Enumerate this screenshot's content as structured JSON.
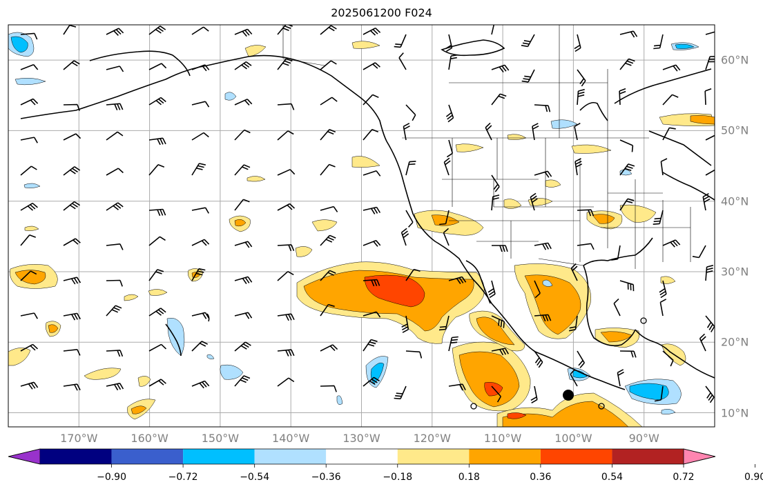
{
  "title": "2025061200 F024",
  "map": {
    "projection": "plate-carree",
    "extent": {
      "lon_min": -180,
      "lon_max": -80,
      "lat_min": 8,
      "lat_max": 65
    },
    "lon_labels": [
      "170°W",
      "160°W",
      "150°W",
      "140°W",
      "130°W",
      "120°W",
      "110°W",
      "100°W",
      "90°W"
    ],
    "lat_labels": [
      "60°N",
      "50°N",
      "40°N",
      "30°N",
      "20°N",
      "10°N"
    ],
    "gridlines": true,
    "field": "shaded anomaly with wind barbs",
    "wind_barbs": true
  },
  "colorbar": {
    "orientation": "horizontal",
    "extend": "both",
    "colors": [
      "#9932cc",
      "#000080",
      "#3a5fcd",
      "#00bfff",
      "#b0e0ff",
      "#ffffff",
      "#ffe98a",
      "#ffa500",
      "#ff4500",
      "#b22222",
      "#ff85b0"
    ],
    "tick_labels": [
      "−0.90",
      "−0.72",
      "−0.54",
      "−0.36",
      "−0.18",
      "0.18",
      "0.36",
      "0.54",
      "0.72",
      "0.90"
    ]
  }
}
